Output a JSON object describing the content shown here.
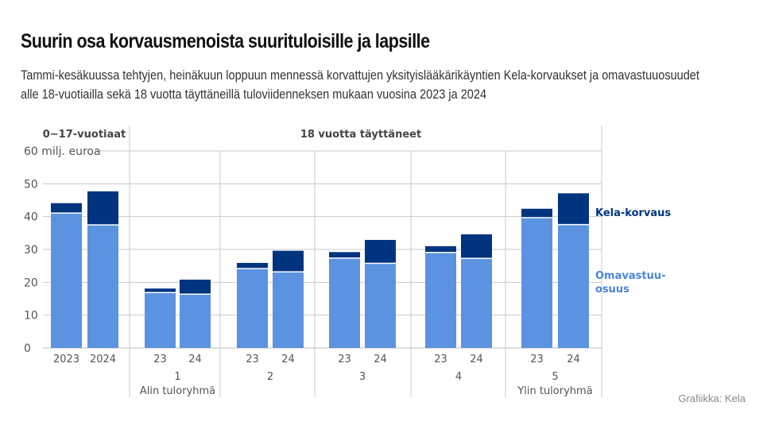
{
  "title": "Suurin osa korvausmenoista suurituloisille ja lapsille",
  "subtitle_lines": [
    "Tammi-kesäkuussa tehtyjen, heinäkuun loppuun mennessä korvattujen yksityislääkärikäyntien Kela-korvaukset ja omavastuuosuudet",
    "alle 18-vuotiailla sekä 18 vuotta täyttäneillä tuloviidenneksen mukaan vuosina 2023 ja 2024"
  ],
  "credit": "Grafiikka: Kela",
  "chart_data": {
    "type": "bar",
    "stacked": true,
    "ylabel": "milj. euroa",
    "ylim": [
      0,
      60
    ],
    "yticks": [
      0,
      10,
      20,
      30,
      40,
      50,
      60
    ],
    "ytick_labels": [
      "0",
      "10",
      "20",
      "30",
      "40",
      "50",
      "60 milj. euroa"
    ],
    "grid": true,
    "section_headers": [
      "0−17-vuotiaat",
      "18 vuotta täyttäneet"
    ],
    "groups": [
      {
        "label": "",
        "sublabel": "",
        "bar_labels": [
          "2023",
          "2024"
        ]
      },
      {
        "label": "1",
        "sublabel": "Alin tuloryhmä",
        "bar_labels": [
          "23",
          "24"
        ]
      },
      {
        "label": "2",
        "sublabel": "",
        "bar_labels": [
          "23",
          "24"
        ]
      },
      {
        "label": "3",
        "sublabel": "",
        "bar_labels": [
          "23",
          "24"
        ]
      },
      {
        "label": "4",
        "sublabel": "",
        "bar_labels": [
          "23",
          "24"
        ]
      },
      {
        "label": "5",
        "sublabel": "Ylin tuloryhmä",
        "bar_labels": [
          "23",
          "24"
        ]
      }
    ],
    "series": [
      {
        "name": "Omavastuu-osuus",
        "legend_lines": [
          "Omavastuu-",
          "osuus"
        ],
        "color": "#5b93e0",
        "values": [
          [
            40.9,
            37.3
          ],
          [
            16.7,
            16.2
          ],
          [
            24.0,
            23.0
          ],
          [
            27.2,
            25.6
          ],
          [
            28.9,
            27.1
          ],
          [
            39.5,
            37.4
          ]
        ]
      },
      {
        "name": "Kela-korvaus",
        "legend_lines": [
          "Kela-korvaus"
        ],
        "color": "#00347f",
        "values": [
          [
            3.2,
            10.4
          ],
          [
            1.4,
            4.6
          ],
          [
            1.9,
            6.6
          ],
          [
            2.0,
            7.3
          ],
          [
            2.1,
            7.5
          ],
          [
            2.9,
            9.7
          ]
        ]
      }
    ],
    "legend": "right"
  }
}
